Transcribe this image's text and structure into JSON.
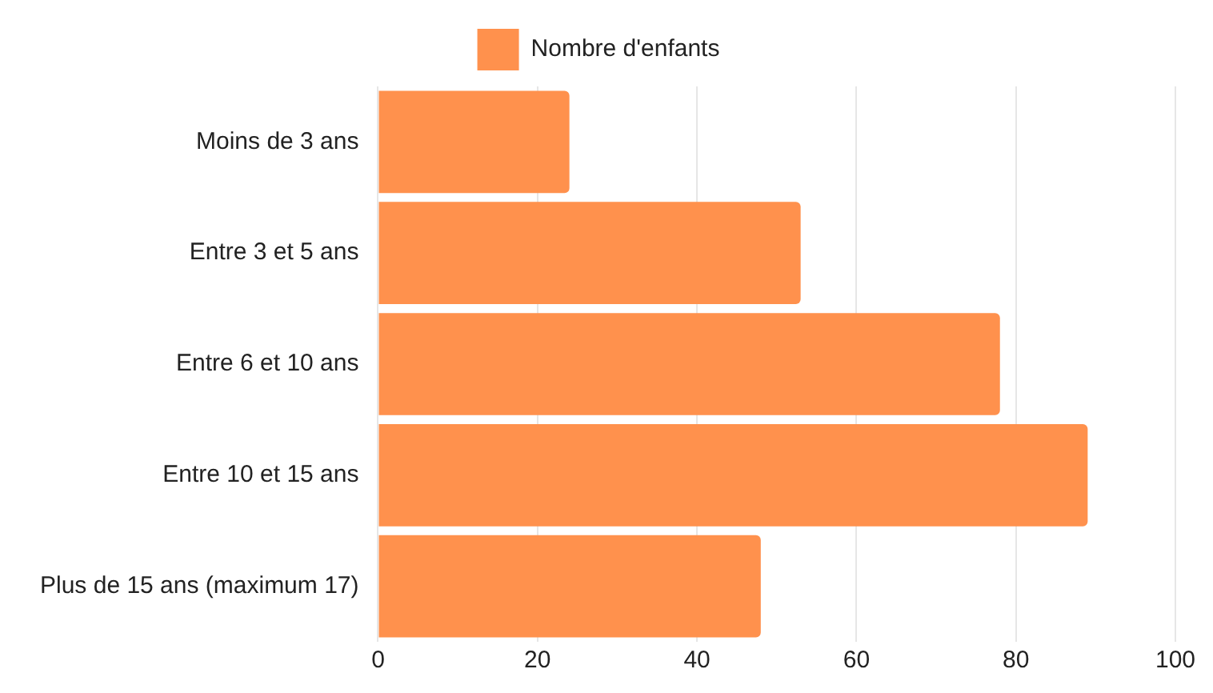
{
  "chart_data": {
    "type": "bar",
    "orientation": "horizontal",
    "categories": [
      "Moins de 3 ans",
      "Entre 3 et 5 ans",
      "Entre 6 et 10 ans",
      "Entre 10 et 15 ans",
      "Plus de 15 ans (maximum 17)"
    ],
    "series": [
      {
        "name": "Nombre d'enfants",
        "color": "#ff914d",
        "values": [
          24,
          53,
          78,
          89,
          48
        ]
      }
    ],
    "xlim": [
      0,
      100
    ],
    "xticks": [
      0,
      20,
      40,
      60,
      80,
      100
    ],
    "grid": "x",
    "legend": "top"
  }
}
